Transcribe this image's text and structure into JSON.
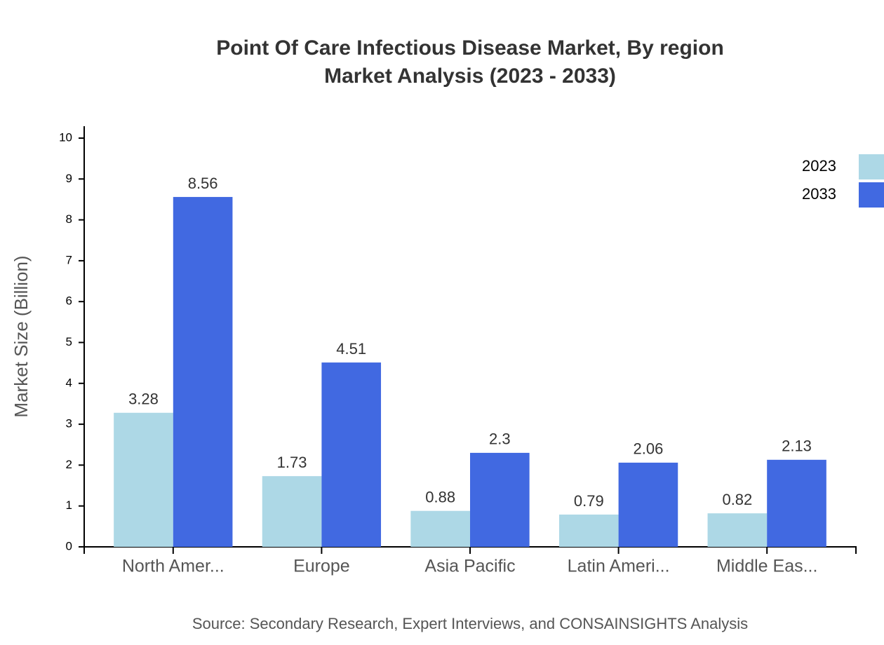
{
  "chart_data": {
    "type": "bar",
    "title": [
      "Point Of Care Infectious Disease Market, By region",
      "Market Analysis (2023 - 2033)"
    ],
    "y_label": "Market Size (Billion)",
    "source": "Source: Secondary Research, Expert Interviews, and CONSAINSIGHTS Analysis",
    "categories": [
      "North Amer...",
      "Europe",
      "Asia Pacific",
      "Latin Ameri...",
      "Middle Eas..."
    ],
    "series": [
      {
        "name": "2023",
        "color": "#add8e6",
        "values": [
          3.28,
          1.73,
          0.88,
          0.79,
          0.82
        ]
      },
      {
        "name": "2033",
        "color": "#4169e1",
        "values": [
          8.56,
          4.51,
          2.3,
          2.06,
          2.13
        ]
      }
    ],
    "ylim": [
      0,
      10.3
    ],
    "yticks": [
      0,
      1,
      2,
      3,
      4,
      5,
      6,
      7,
      8,
      9,
      10
    ],
    "legend": "top-right"
  }
}
